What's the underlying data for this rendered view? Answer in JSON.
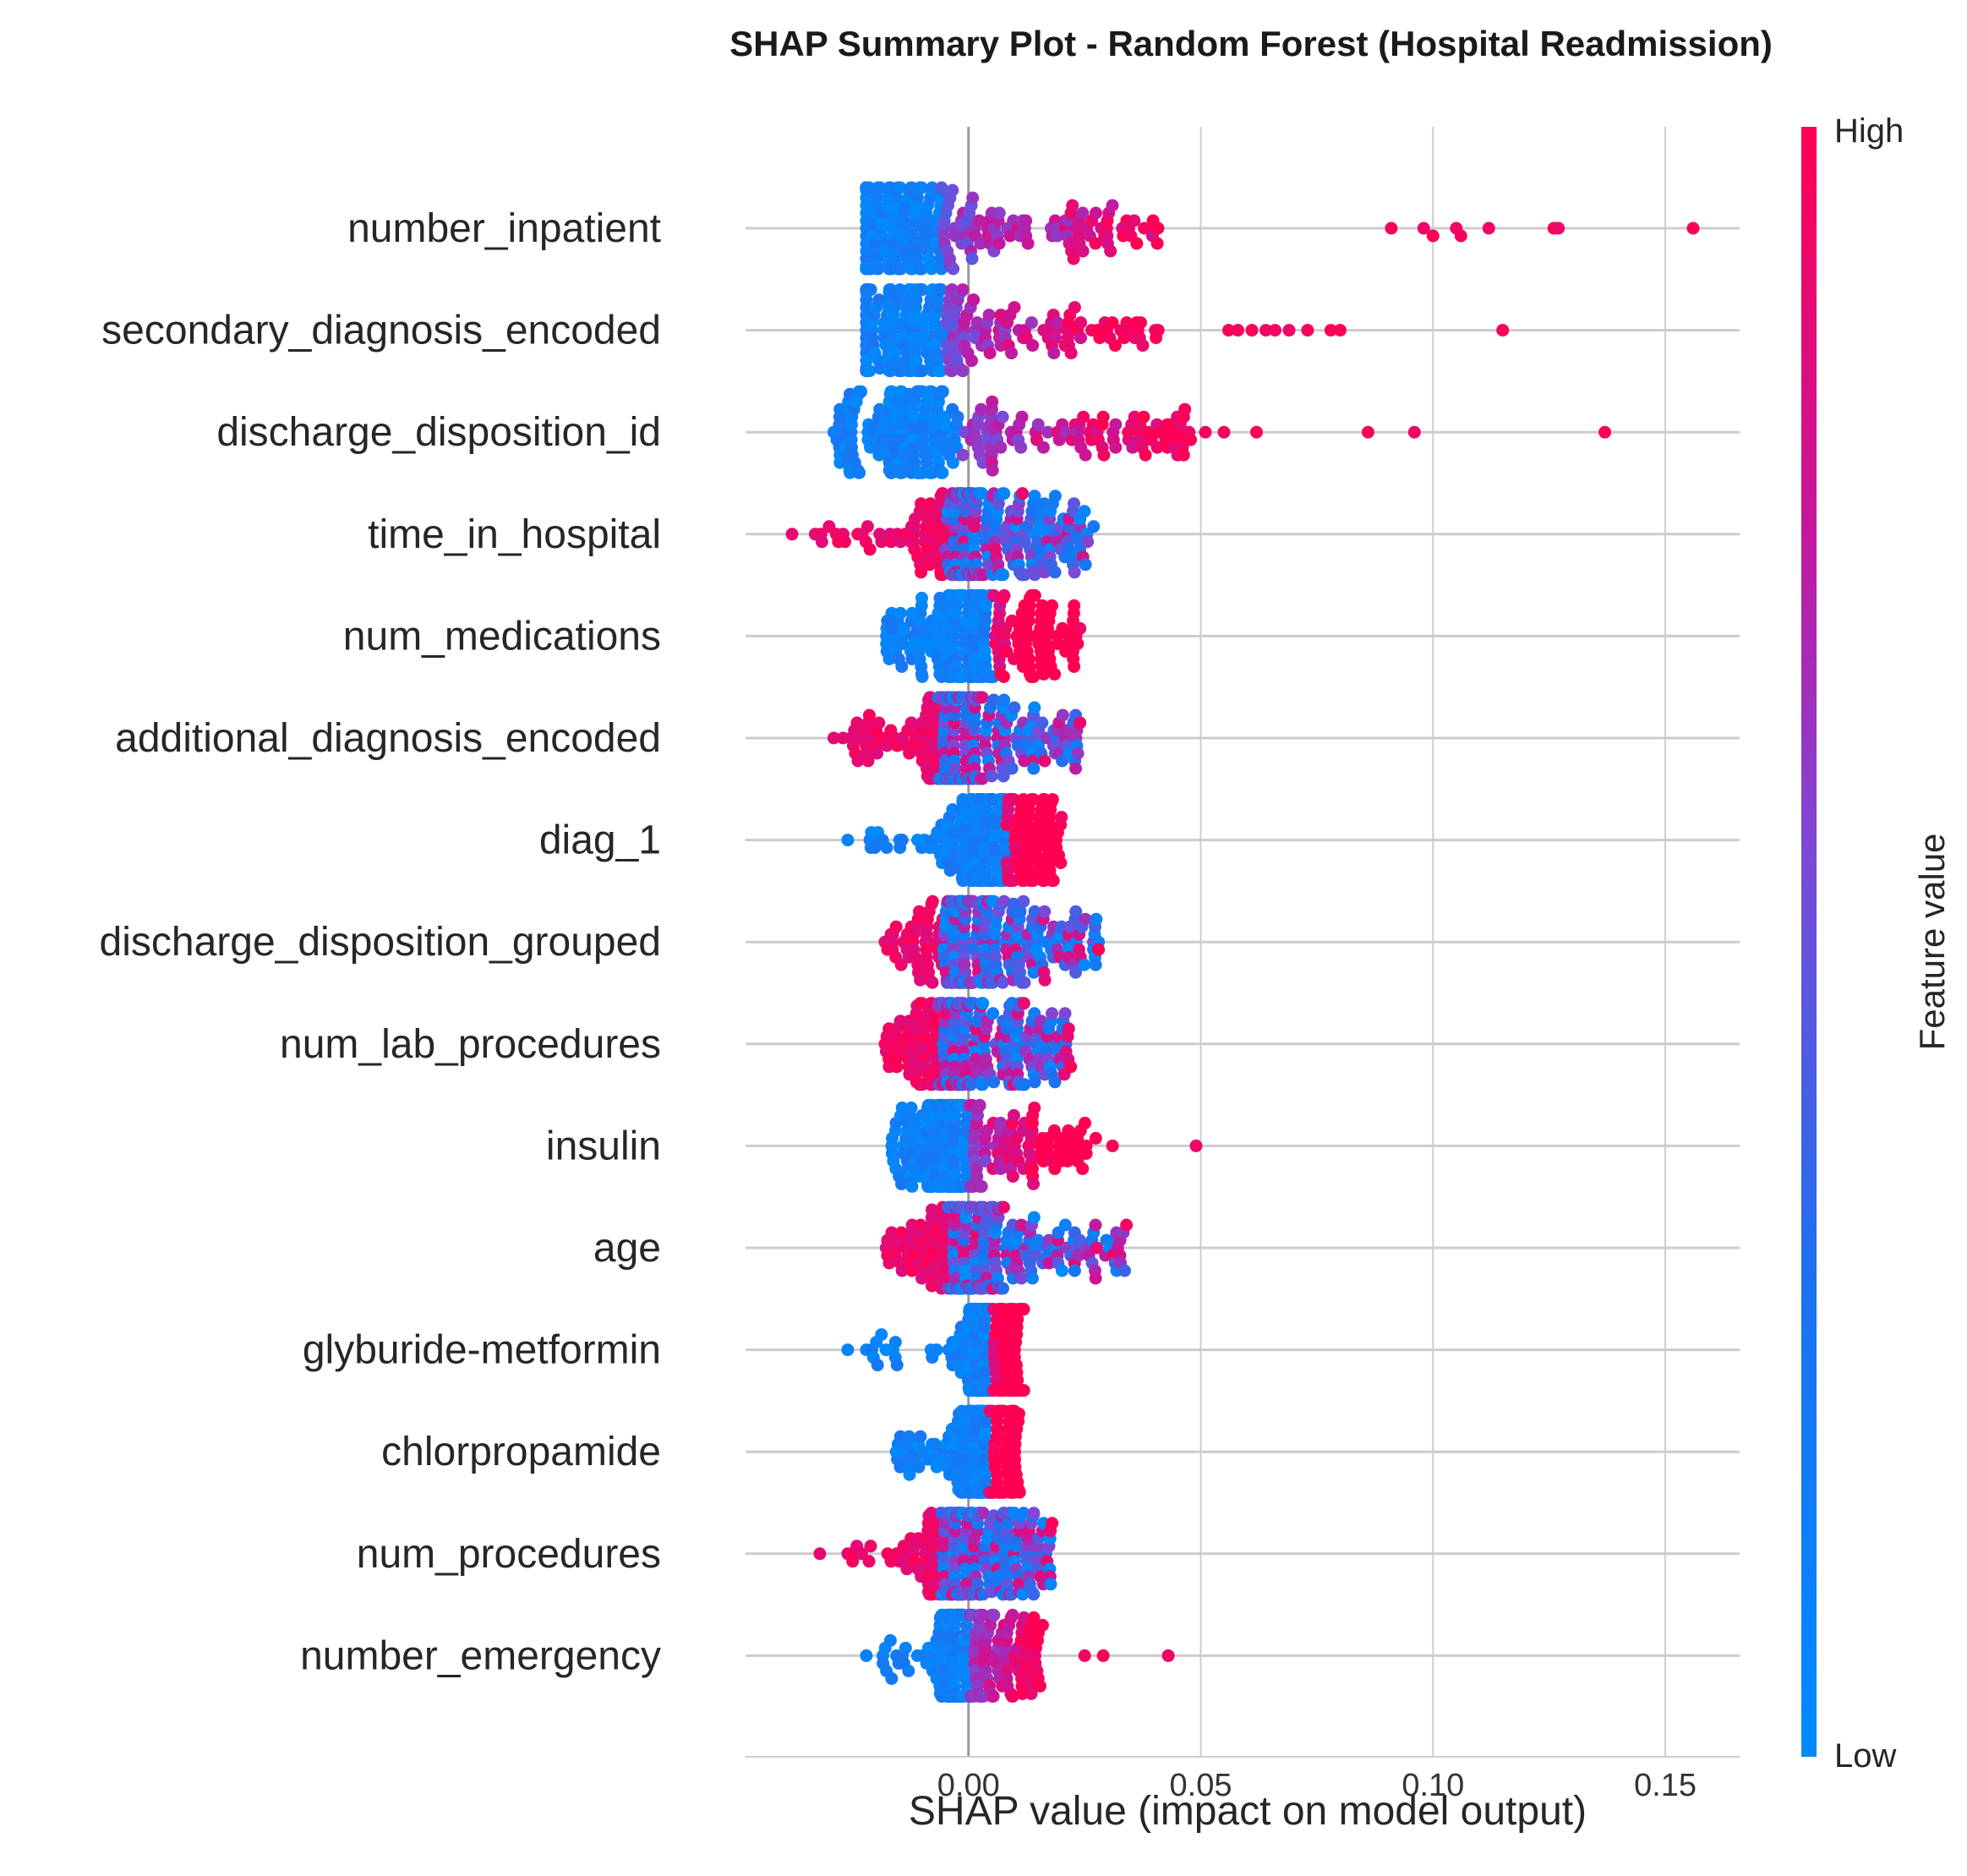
{
  "chart_data": {
    "type": "scatter",
    "subtype": "shap-beeswarm",
    "title": "SHAP Summary Plot - Random Forest (Hospital Readmission)",
    "xlabel": "SHAP value (impact on model output)",
    "xlim": [
      -0.048,
      0.166
    ],
    "xticks": [
      0.0,
      0.05,
      0.1,
      0.15
    ],
    "xtick_labels": [
      "0.00",
      "0.05",
      "0.10",
      "0.15"
    ],
    "grid": true,
    "colorbar": {
      "title": "Feature value",
      "high_label": "High",
      "low_label": "Low",
      "low_color": "#008bfb",
      "high_color": "#ff0052"
    },
    "features": [
      {
        "name": "number_inpatient",
        "min": -0.022,
        "max": 0.156,
        "core_center": -0.013,
        "core_halfwidth": 0.012,
        "outliers_high": [
          0.091,
          0.098,
          0.1,
          0.105,
          0.106,
          0.112,
          0.126,
          0.127,
          0.156
        ],
        "low_tail": [],
        "high_low_side": false
      },
      {
        "name": "secondary_diagnosis_encoded",
        "min": -0.022,
        "max": 0.115,
        "core_center": -0.012,
        "core_halfwidth": 0.012,
        "outliers_high": [
          0.056,
          0.058,
          0.061,
          0.064,
          0.066,
          0.069,
          0.073,
          0.078,
          0.08,
          0.115
        ],
        "low_tail": [],
        "high_low_side": false
      },
      {
        "name": "discharge_disposition_id",
        "min": -0.029,
        "max": 0.137,
        "core_center": -0.01,
        "core_halfwidth": 0.013,
        "outliers_high": [
          0.051,
          0.055,
          0.062,
          0.086,
          0.096,
          0.137
        ],
        "low_tail": [
          -0.029
        ],
        "high_low_side": false
      },
      {
        "name": "time_in_hospital",
        "min": -0.038,
        "max": 0.027,
        "core_center": 0.0,
        "core_halfwidth": 0.01,
        "outliers_high": [],
        "low_tail": [
          -0.038,
          -0.033,
          -0.03,
          -0.027
        ],
        "high_low_side": true
      },
      {
        "name": "num_medications",
        "min": -0.02,
        "max": 0.024,
        "core_center": 0.0,
        "core_halfwidth": 0.009,
        "outliers_high": [
          0.024
        ],
        "low_tail": [],
        "high_low_side": false
      },
      {
        "name": "additional_diagnosis_encoded",
        "min": -0.029,
        "max": 0.024,
        "core_center": -0.002,
        "core_halfwidth": 0.009,
        "outliers_high": [
          0.024
        ],
        "low_tail": [
          -0.029,
          -0.027,
          -0.024
        ],
        "high_low_side": true
      },
      {
        "name": "diag_1",
        "min": -0.026,
        "max": 0.02,
        "core_center": 0.004,
        "core_halfwidth": 0.007,
        "outliers_high": [
          0.02
        ],
        "low_tail": [
          -0.026
        ],
        "high_low_side": false
      },
      {
        "name": "discharge_disposition_grouped",
        "min": -0.02,
        "max": 0.028,
        "core_center": -0.001,
        "core_halfwidth": 0.009,
        "outliers_high": [
          0.028
        ],
        "low_tail": [],
        "high_low_side": true
      },
      {
        "name": "num_lab_procedures",
        "min": -0.02,
        "max": 0.022,
        "core_center": -0.002,
        "core_halfwidth": 0.009,
        "outliers_high": [
          0.022
        ],
        "low_tail": [],
        "high_low_side": true
      },
      {
        "name": "insulin",
        "min": -0.018,
        "max": 0.049,
        "core_center": -0.004,
        "core_halfwidth": 0.007,
        "outliers_high": [
          0.031,
          0.049
        ],
        "low_tail": [],
        "high_low_side": false
      },
      {
        "name": "age",
        "min": -0.02,
        "max": 0.034,
        "core_center": 0.0,
        "core_halfwidth": 0.009,
        "outliers_high": [
          0.031,
          0.034
        ],
        "low_tail": [],
        "high_low_side": true
      },
      {
        "name": "glyburide-metformin",
        "min": -0.026,
        "max": 0.012,
        "core_center": 0.003,
        "core_halfwidth": 0.004,
        "outliers_high": [],
        "low_tail": [
          -0.026,
          -0.022
        ],
        "high_low_side": false
      },
      {
        "name": "chlorpropamide",
        "min": -0.019,
        "max": 0.011,
        "core_center": 0.002,
        "core_halfwidth": 0.004,
        "outliers_high": [],
        "low_tail": [],
        "high_low_side": false
      },
      {
        "name": "num_procedures",
        "min": -0.032,
        "max": 0.018,
        "core_center": -0.002,
        "core_halfwidth": 0.008,
        "outliers_high": [
          0.018
        ],
        "low_tail": [
          -0.032,
          -0.026,
          -0.023
        ],
        "high_low_side": true
      },
      {
        "name": "number_emergency",
        "min": -0.022,
        "max": 0.043,
        "core_center": -0.002,
        "core_halfwidth": 0.004,
        "outliers_high": [
          0.025,
          0.029,
          0.043
        ],
        "low_tail": [
          -0.022
        ],
        "high_low_side": false
      }
    ]
  }
}
